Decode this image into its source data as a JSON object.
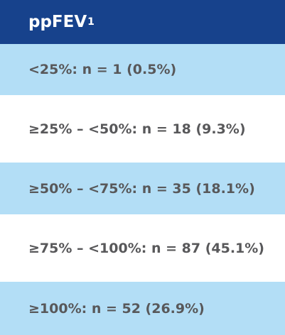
{
  "table": {
    "header": {
      "text": "ppFEV",
      "subscript": "1"
    },
    "rows": [
      "<25%: n = 1 (0.5%)",
      "≥25% – <50%: n = 18 (9.3%)",
      "≥50% – <75%: n = 35 (18.1%)",
      "≥75% – <100%: n = 87 (45.1%)",
      "≥100%: n = 52 (26.9%)"
    ]
  }
}
